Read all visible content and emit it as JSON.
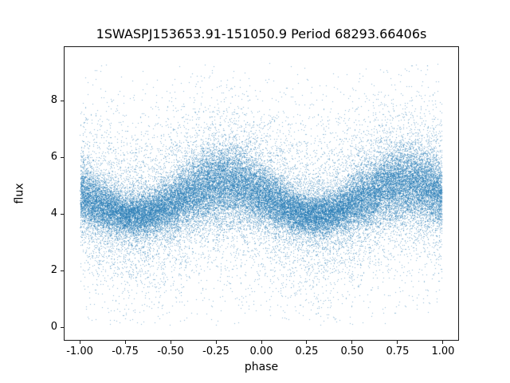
{
  "chart_data": {
    "type": "scatter",
    "title": "1SWASPJ153653.91-151050.9 Period 68293.66406s",
    "xlabel": "phase",
    "ylabel": "flux",
    "xlim": [
      -1.088,
      1.088
    ],
    "ylim": [
      -0.47,
      9.93
    ],
    "xticks": [
      {
        "value": -1.0,
        "label": "-1.00"
      },
      {
        "value": -0.75,
        "label": "-0.75"
      },
      {
        "value": -0.5,
        "label": "-0.50"
      },
      {
        "value": -0.25,
        "label": "-0.25"
      },
      {
        "value": 0.0,
        "label": "0.00"
      },
      {
        "value": 0.25,
        "label": "0.25"
      },
      {
        "value": 0.5,
        "label": "0.50"
      },
      {
        "value": 0.75,
        "label": "0.75"
      },
      {
        "value": 1.0,
        "label": "1.00"
      }
    ],
    "yticks": [
      {
        "value": 0,
        "label": "0"
      },
      {
        "value": 2,
        "label": "2"
      },
      {
        "value": 4,
        "label": "4"
      },
      {
        "value": 6,
        "label": "6"
      },
      {
        "value": 8,
        "label": "8"
      }
    ],
    "grid": false,
    "legend": null,
    "marker_color": "#1f77b4",
    "marker_alpha": 0.5,
    "marker_size_px": 1,
    "n_points": 50000,
    "model": {
      "description": "Phase-folded light curve: dense flux band modulated once per unit phase, with narrow dips (eclipse-like pinches) at phase 0.30 and -0.70, broad maxima near phase -0.20 and 0.80; heavy-tailed scatter spanning flux 0 to ~9.35 across the full phase range -1 to 1.",
      "phase_range": [
        -1,
        1
      ],
      "dip_phase": 0.3,
      "period": 1.0,
      "mean_base": 3.95,
      "mean_amplitude": 1.15,
      "sigma_core_min": 0.38,
      "sigma_core_mod": 0.25,
      "sigma_mid": 1.25,
      "sigma_tail": 2.3,
      "mix": [
        0.7,
        0.22,
        0.08
      ],
      "flux_clip": [
        0.02,
        9.35
      ],
      "seed": 42
    }
  }
}
